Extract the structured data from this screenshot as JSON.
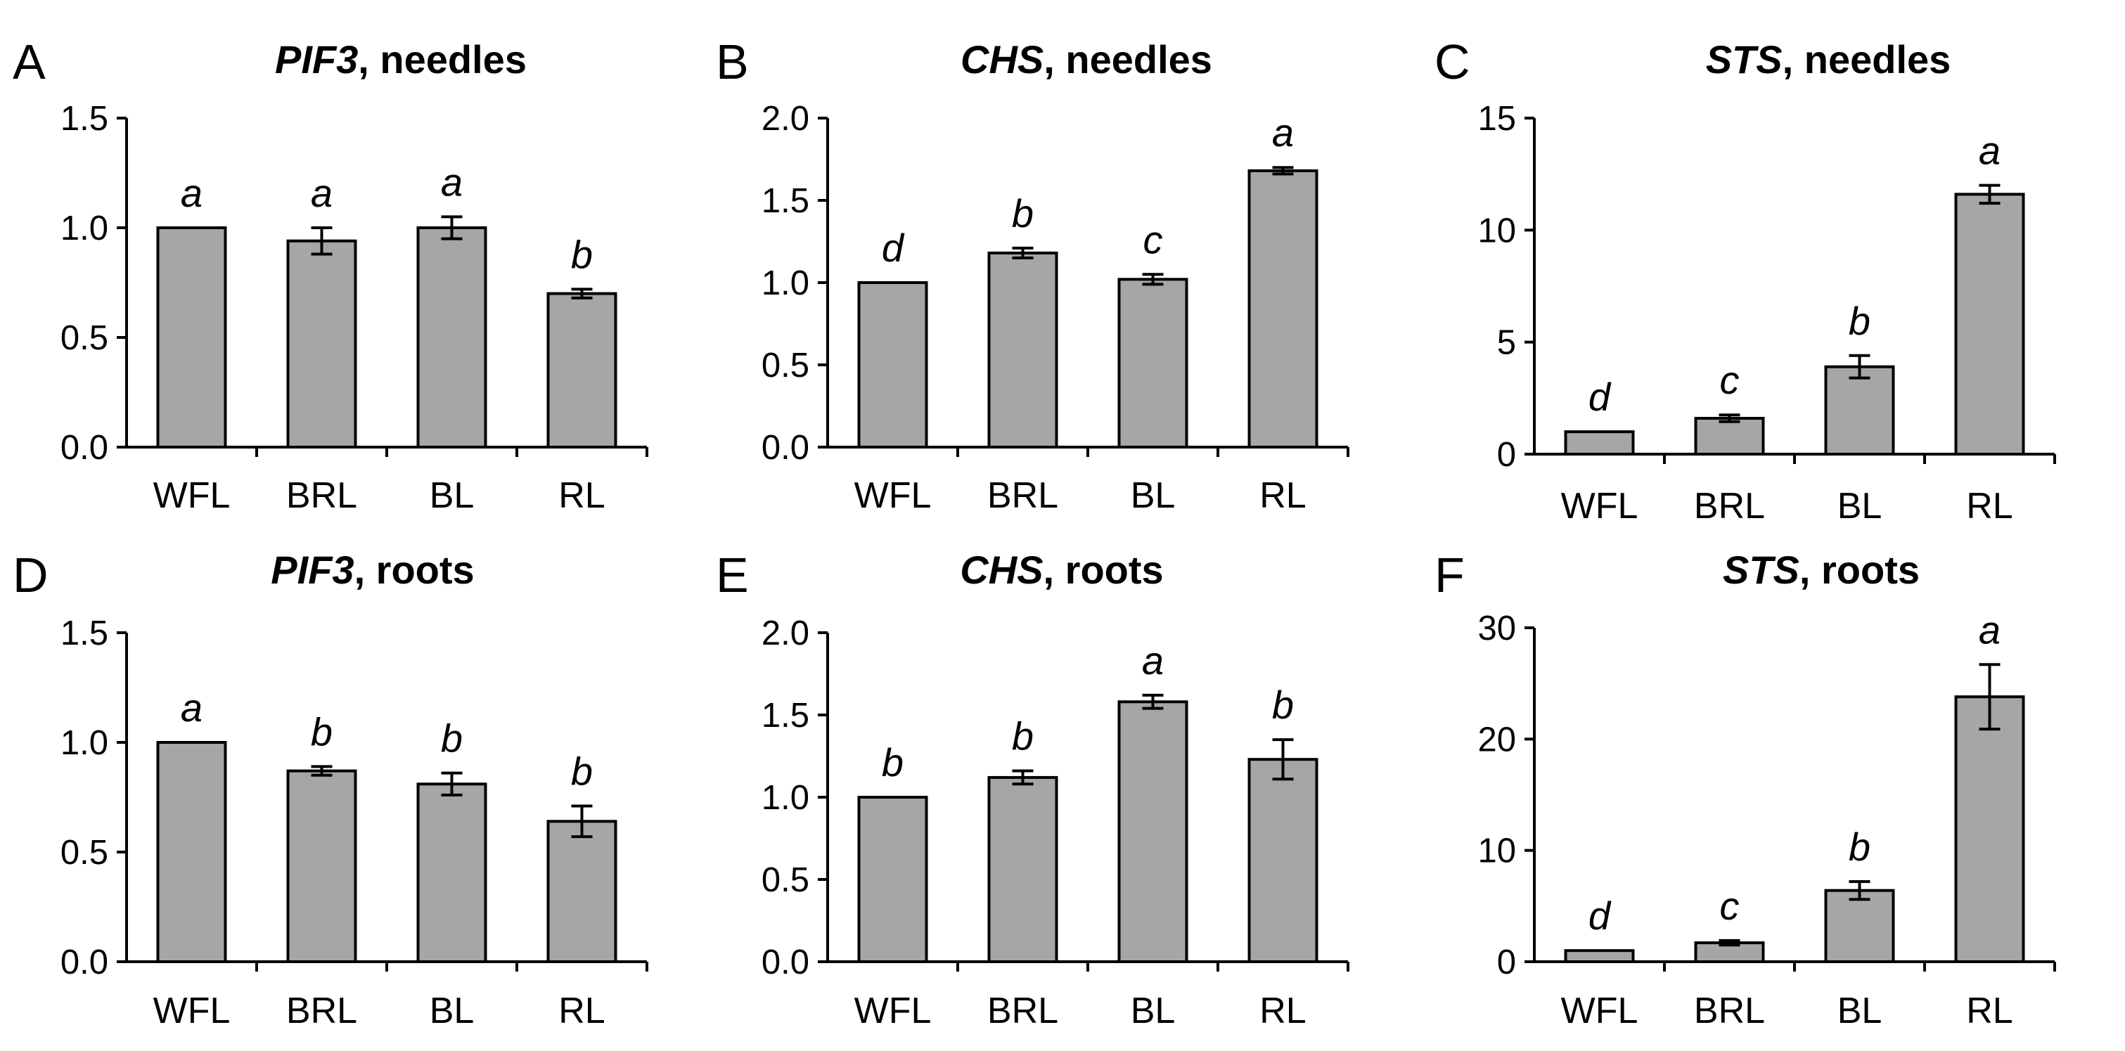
{
  "chart_data": [
    {
      "panel": "A",
      "type": "bar",
      "title_gene": "PIF3",
      "title_rest": ", needles",
      "categories": [
        "WFL",
        "BRL",
        "BL",
        "RL"
      ],
      "values": [
        1.0,
        0.94,
        1.0,
        0.7
      ],
      "errors": [
        0.0,
        0.06,
        0.05,
        0.02
      ],
      "letters": [
        "a",
        "a",
        "a",
        "b"
      ],
      "ylim": [
        0,
        1.5
      ],
      "yticks": [
        0.0,
        0.5,
        1.0,
        1.5
      ],
      "yticklabels": [
        "0.0",
        "0.5",
        "1.0",
        "1.5"
      ],
      "xlabel": "",
      "ylabel": "",
      "bar_color": "#a6a6a6"
    },
    {
      "panel": "B",
      "type": "bar",
      "title_gene": "CHS",
      "title_rest": ", needles",
      "categories": [
        "WFL",
        "BRL",
        "BL",
        "RL"
      ],
      "values": [
        1.0,
        1.18,
        1.02,
        1.68
      ],
      "errors": [
        0.0,
        0.03,
        0.03,
        0.02
      ],
      "letters": [
        "d",
        "b",
        "c",
        "a"
      ],
      "ylim": [
        0,
        2.0
      ],
      "yticks": [
        0.0,
        0.5,
        1.0,
        1.5,
        2.0
      ],
      "yticklabels": [
        "0.0",
        "0.5",
        "1.0",
        "1.5",
        "2.0"
      ],
      "xlabel": "",
      "ylabel": "",
      "bar_color": "#a6a6a6"
    },
    {
      "panel": "C",
      "type": "bar",
      "title_gene": "STS",
      "title_rest": ", needles",
      "categories": [
        "WFL",
        "BRL",
        "BL",
        "RL"
      ],
      "values": [
        1.0,
        1.6,
        3.9,
        11.6
      ],
      "errors": [
        0.0,
        0.15,
        0.5,
        0.4
      ],
      "letters": [
        "d",
        "c",
        "b",
        "a"
      ],
      "ylim": [
        0,
        15
      ],
      "yticks": [
        0,
        5,
        10,
        15
      ],
      "yticklabels": [
        "0",
        "5",
        "10",
        "15"
      ],
      "xlabel": "",
      "ylabel": "",
      "bar_color": "#a6a6a6"
    },
    {
      "panel": "D",
      "type": "bar",
      "title_gene": "PIF3",
      "title_rest": ", roots",
      "categories": [
        "WFL",
        "BRL",
        "BL",
        "RL"
      ],
      "values": [
        1.0,
        0.87,
        0.81,
        0.64
      ],
      "errors": [
        0.0,
        0.02,
        0.05,
        0.07
      ],
      "letters": [
        "a",
        "b",
        "b",
        "b"
      ],
      "ylim": [
        0,
        1.5
      ],
      "yticks": [
        0.0,
        0.5,
        1.0,
        1.5
      ],
      "yticklabels": [
        "0.0",
        "0.5",
        "1.0",
        "1.5"
      ],
      "xlabel": "",
      "ylabel": "",
      "bar_color": "#a6a6a6"
    },
    {
      "panel": "E",
      "type": "bar",
      "title_gene": "CHS",
      "title_rest": ", roots",
      "categories": [
        "WFL",
        "BRL",
        "BL",
        "RL"
      ],
      "values": [
        1.0,
        1.12,
        1.58,
        1.23
      ],
      "errors": [
        0.0,
        0.04,
        0.04,
        0.12
      ],
      "letters": [
        "b",
        "b",
        "a",
        "b"
      ],
      "ylim": [
        0,
        2.0
      ],
      "yticks": [
        0.0,
        0.5,
        1.0,
        1.5,
        2.0
      ],
      "yticklabels": [
        "0.0",
        "0.5",
        "1.0",
        "1.5",
        "2.0"
      ],
      "xlabel": "",
      "ylabel": "",
      "bar_color": "#a6a6a6"
    },
    {
      "panel": "F",
      "type": "bar",
      "title_gene": "STS",
      "title_rest": ", roots",
      "categories": [
        "WFL",
        "BRL",
        "BL",
        "RL"
      ],
      "values": [
        1.0,
        1.7,
        6.4,
        23.8
      ],
      "errors": [
        0.0,
        0.2,
        0.8,
        2.9
      ],
      "letters": [
        "d",
        "c",
        "b",
        "a"
      ],
      "ylim": [
        0,
        30
      ],
      "yticks": [
        0,
        10,
        20,
        30
      ],
      "yticklabels": [
        "0",
        "10",
        "20",
        "30"
      ],
      "xlabel": "",
      "ylabel": "",
      "bar_color": "#a6a6a6"
    }
  ]
}
